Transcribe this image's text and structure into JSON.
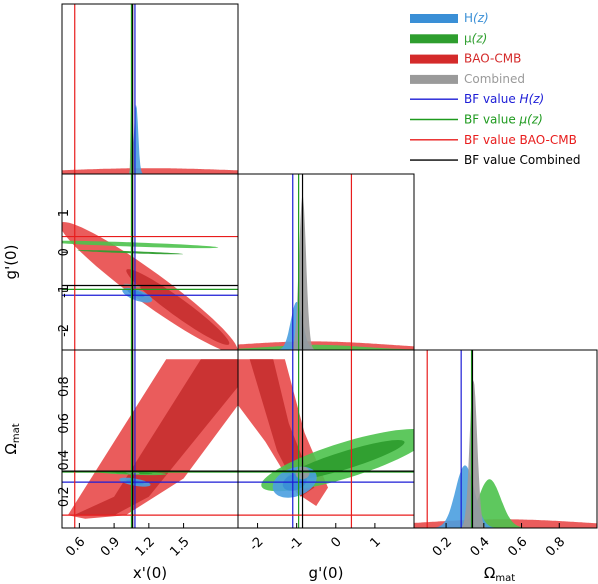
{
  "chart_data": {
    "type": "corner",
    "parameters": [
      {
        "id": "x",
        "label": "x'(0)",
        "range": [
          0.45,
          1.97
        ],
        "ticks": [
          0.6,
          0.9,
          1.2,
          1.5
        ]
      },
      {
        "id": "g",
        "label": "g'(0)",
        "range": [
          -2.5,
          2.0
        ],
        "ticks": [
          -2,
          -1,
          0,
          1
        ]
      },
      {
        "id": "om",
        "label": "Ω",
        "sub": "mat",
        "range": [
          0.03,
          1.0
        ],
        "ticks": [
          0.2,
          0.4,
          0.6,
          0.8
        ]
      }
    ],
    "series": [
      {
        "name": "H(z)",
        "color": "#4a9fe0",
        "inner": "#3a8fd6",
        "bf": {
          "x": 1.08,
          "g": -1.1,
          "om": 0.28
        }
      },
      {
        "name": "μ(z)",
        "color": "#4cc24c",
        "inner": "#2e9e2e",
        "bf": {
          "x": 1.05,
          "g": -0.95,
          "om": 0.335
        }
      },
      {
        "name": "BAO-CMB",
        "color": "#e84a4a",
        "inner": "#c83030",
        "bf": {
          "x": 0.56,
          "g": 0.4,
          "om": 0.1
        }
      },
      {
        "name": "Combined",
        "color": "#9a9a9a",
        "inner": "#7a7a7a",
        "bf": {
          "x": 1.06,
          "g": -0.85,
          "om": 0.34
        }
      }
    ],
    "legend": {
      "placement": "top-right",
      "entries": [
        {
          "text": "H",
          "italic_suffix": "(z)",
          "color": "#3a8fd6",
          "style": "band"
        },
        {
          "text": "μ",
          "italic_suffix": "(z)",
          "color": "#2e9e2e",
          "style": "band"
        },
        {
          "text": "BAO-CMB",
          "color": "#d42a2a",
          "style": "band"
        },
        {
          "text": "Combined",
          "color": "#9a9a9a",
          "style": "band"
        },
        {
          "text": "BF value ",
          "italic_suffix": "H(z)",
          "color": "#1c1cd6",
          "style": "line"
        },
        {
          "text": "BF value ",
          "italic_suffix": "μ(z)",
          "color": "#1e9a1e",
          "style": "line"
        },
        {
          "text": "BF value BAO-CMB",
          "color": "#e81c1c",
          "style": "line"
        },
        {
          "text": "BF value Combined",
          "color": "#000000",
          "style": "line"
        }
      ]
    },
    "grid": false
  }
}
